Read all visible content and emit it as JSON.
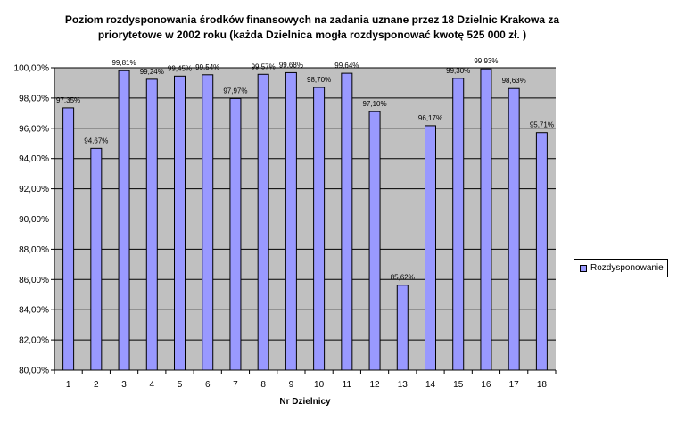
{
  "chart_data": {
    "type": "bar",
    "title_line1": "Poziom rozdysponowania środków finansowych na zadania uznane przez 18 Dzielnic Krakowa za",
    "title_line2": "priorytetowe w 2002 roku (każda Dzielnica mogła rozdysponować kwotę 525 000 zł. )",
    "xlabel": "Nr Dzielnicy",
    "ylabel": "",
    "ylim": [
      80,
      100
    ],
    "yticks": [
      "80,00%",
      "82,00%",
      "84,00%",
      "86,00%",
      "88,00%",
      "90,00%",
      "92,00%",
      "94,00%",
      "96,00%",
      "98,00%",
      "100,00%"
    ],
    "categories": [
      "1",
      "2",
      "3",
      "4",
      "5",
      "6",
      "7",
      "8",
      "9",
      "10",
      "11",
      "12",
      "13",
      "14",
      "15",
      "16",
      "17",
      "18"
    ],
    "series": [
      {
        "name": "Rozdysponowanie",
        "values": [
          97.35,
          94.67,
          99.81,
          99.24,
          99.45,
          99.54,
          97.97,
          99.57,
          99.68,
          98.7,
          99.64,
          97.1,
          85.62,
          96.17,
          99.3,
          99.93,
          98.63,
          95.71
        ],
        "labels": [
          "97,35%",
          "94,67%",
          "99,81%",
          "99,24%",
          "99,45%",
          "99,54%",
          "97,97%",
          "99,57%",
          "99,68%",
          "98,70%",
          "99,64%",
          "97,10%",
          "85,62%",
          "96,17%",
          "99,30%",
          "99,93%",
          "98,63%",
          "95,71%"
        ]
      }
    ],
    "grid": true,
    "legend_position": "right",
    "colors": {
      "bar_fill": "#9999ff",
      "bar_stroke": "#000000",
      "plot_bg": "#c0c0c0",
      "grid": "#000000"
    }
  }
}
